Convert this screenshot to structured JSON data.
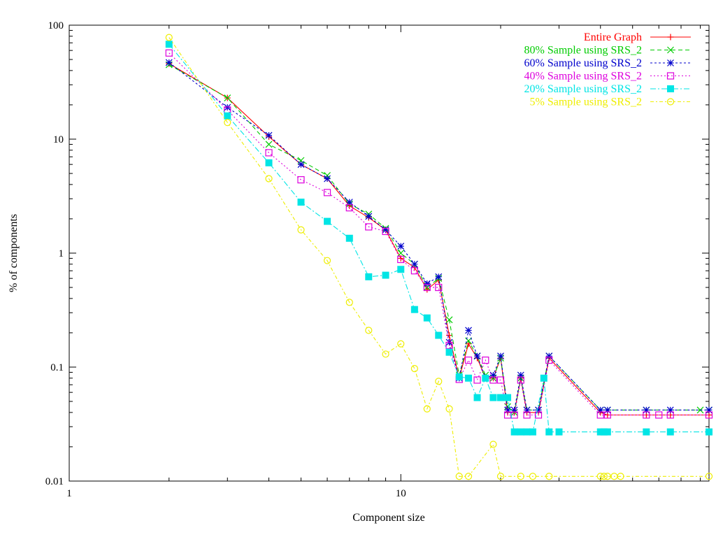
{
  "chart_data": {
    "type": "line",
    "xlabel": "Component size",
    "ylabel": "% of components",
    "xscale": "log",
    "yscale": "log",
    "xlim": [
      1,
      85
    ],
    "ylim": [
      0.01,
      100
    ],
    "x_ticks": [
      {
        "value": 1,
        "label": "1"
      },
      {
        "value": 10,
        "label": "10"
      }
    ],
    "y_ticks": [
      {
        "value": 0.01,
        "label": "0.01"
      },
      {
        "value": 0.1,
        "label": "0.1"
      },
      {
        "value": 1,
        "label": "1"
      },
      {
        "value": 10,
        "label": "10"
      },
      {
        "value": 100,
        "label": "100"
      }
    ],
    "grid": false,
    "legend_position": "top-right",
    "series": [
      {
        "name": "Entire Graph",
        "color": "#ff0000",
        "marker": "plus",
        "dash": "",
        "x": [
          2,
          3,
          4,
          5,
          6,
          7,
          8,
          9,
          10,
          11,
          12,
          13,
          14,
          15,
          16,
          17,
          18,
          19,
          20,
          21,
          22,
          23,
          24,
          26,
          28,
          40,
          42,
          55,
          65,
          85
        ],
        "y": [
          46,
          23,
          10.5,
          6,
          4.5,
          2.6,
          2.05,
          1.6,
          0.9,
          0.75,
          0.48,
          0.58,
          0.19,
          0.08,
          0.16,
          0.12,
          0.08,
          0.08,
          0.12,
          0.04,
          0.04,
          0.08,
          0.04,
          0.04,
          0.12,
          0.04,
          0.038,
          0.038,
          0.038,
          0.038
        ]
      },
      {
        "name": "80% Sample using SRS_2",
        "color": "#00cc00",
        "marker": "x",
        "dash": "6,4",
        "x": [
          2,
          3,
          4,
          5,
          6,
          7,
          8,
          9,
          10,
          11,
          12,
          13,
          14,
          15,
          16,
          17,
          18,
          19,
          20,
          21,
          22,
          23,
          24,
          26,
          28,
          40,
          42,
          55,
          80,
          85
        ],
        "y": [
          45,
          23,
          9,
          6.5,
          4.8,
          2.7,
          2.2,
          1.65,
          1.0,
          0.8,
          0.5,
          0.6,
          0.26,
          0.085,
          0.17,
          0.125,
          0.085,
          0.08,
          0.12,
          0.045,
          0.04,
          0.08,
          0.042,
          0.042,
          0.125,
          0.042,
          0.042,
          0.042,
          0.042,
          0.042
        ]
      },
      {
        "name": "60% Sample using SRS_2",
        "color": "#0000cc",
        "marker": "star",
        "dash": "3,3",
        "x": [
          2,
          3,
          4,
          5,
          6,
          7,
          8,
          9,
          10,
          11,
          12,
          13,
          14,
          15,
          16,
          17,
          18,
          19,
          20,
          21,
          22,
          23,
          24,
          26,
          28,
          40,
          42,
          55,
          65,
          85
        ],
        "y": [
          47,
          19,
          10.8,
          6,
          4.5,
          2.8,
          2.1,
          1.6,
          1.15,
          0.8,
          0.54,
          0.62,
          0.165,
          0.08,
          0.21,
          0.125,
          0.08,
          0.085,
          0.125,
          0.042,
          0.042,
          0.085,
          0.042,
          0.042,
          0.125,
          0.042,
          0.042,
          0.042,
          0.042,
          0.042
        ]
      },
      {
        "name": "40% Sample using SRS_2",
        "color": "#dd00dd",
        "marker": "square-open",
        "dash": "2,3",
        "x": [
          2,
          3,
          4,
          5,
          6,
          7,
          8,
          9,
          10,
          11,
          12,
          13,
          14,
          15,
          16,
          17,
          18,
          19,
          20,
          21,
          22,
          23,
          24,
          26,
          28,
          40,
          42,
          55,
          60,
          65,
          85
        ],
        "y": [
          57,
          18,
          7.6,
          4.4,
          3.4,
          2.5,
          1.7,
          1.55,
          0.88,
          0.7,
          0.5,
          0.5,
          0.155,
          0.078,
          0.115,
          0.077,
          0.115,
          0.077,
          0.077,
          0.038,
          0.038,
          0.077,
          0.038,
          0.038,
          0.115,
          0.038,
          0.038,
          0.038,
          0.038,
          0.038,
          0.038
        ]
      },
      {
        "name": "20% Sample using SRS_2",
        "color": "#00e5e5",
        "marker": "square-filled",
        "dash": "8,3,2,3",
        "x": [
          2,
          3,
          4,
          5,
          6,
          7,
          8,
          9,
          10,
          11,
          12,
          13,
          14,
          15,
          16,
          17,
          18,
          19,
          20,
          21,
          22,
          23,
          24,
          25,
          27,
          28,
          30,
          40,
          41,
          42,
          55,
          65,
          85
        ],
        "y": [
          68,
          16,
          6.2,
          2.8,
          1.9,
          1.35,
          0.62,
          0.64,
          0.72,
          0.32,
          0.27,
          0.19,
          0.135,
          0.082,
          0.08,
          0.054,
          0.08,
          0.054,
          0.054,
          0.054,
          0.027,
          0.027,
          0.027,
          0.027,
          0.08,
          0.027,
          0.027,
          0.027,
          0.027,
          0.027,
          0.027,
          0.027,
          0.027
        ]
      },
      {
        "name": "5% Sample using SRS_2",
        "color": "#eeee00",
        "marker": "circle-open",
        "dash": "5,3,2,3",
        "x": [
          2,
          3,
          4,
          5,
          6,
          7,
          8,
          9,
          10,
          11,
          12,
          13,
          14,
          15,
          16,
          19,
          20,
          23,
          25,
          28,
          40,
          41,
          42,
          44,
          46,
          85
        ],
        "y": [
          78,
          14,
          4.5,
          1.6,
          0.86,
          0.37,
          0.21,
          0.13,
          0.16,
          0.097,
          0.043,
          0.075,
          0.043,
          0.011,
          0.011,
          0.021,
          0.011,
          0.011,
          0.011,
          0.011,
          0.011,
          0.011,
          0.011,
          0.011,
          0.011,
          0.011
        ]
      }
    ]
  }
}
